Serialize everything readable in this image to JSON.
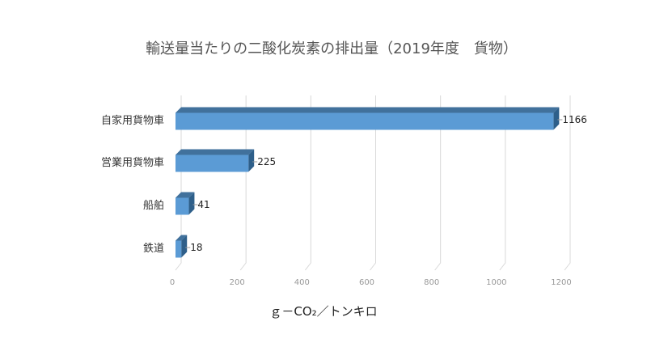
{
  "chart_data": {
    "type": "bar",
    "orientation": "horizontal",
    "title": "輸送量当たりの二酸化炭素の排出量（2019年度　貨物）",
    "categories": [
      "自家用貨物車",
      "営業用貨物車",
      "船舶",
      "鉄道"
    ],
    "values": [
      1166,
      225,
      41,
      18
    ],
    "data_labels": [
      "1166",
      "225",
      "41",
      "18"
    ],
    "xlabel": "ｇ－CO₂／トンキロ",
    "ylabel": "",
    "xlim": [
      0,
      1200
    ],
    "xticks": [
      0,
      200,
      400,
      600,
      800,
      1000,
      1200
    ],
    "grid": true,
    "legend": "none",
    "colors": {
      "front": "#5b9bd5",
      "top": "#41719c",
      "side": "#2e5f8a",
      "grid": "#d9d9d9"
    }
  }
}
